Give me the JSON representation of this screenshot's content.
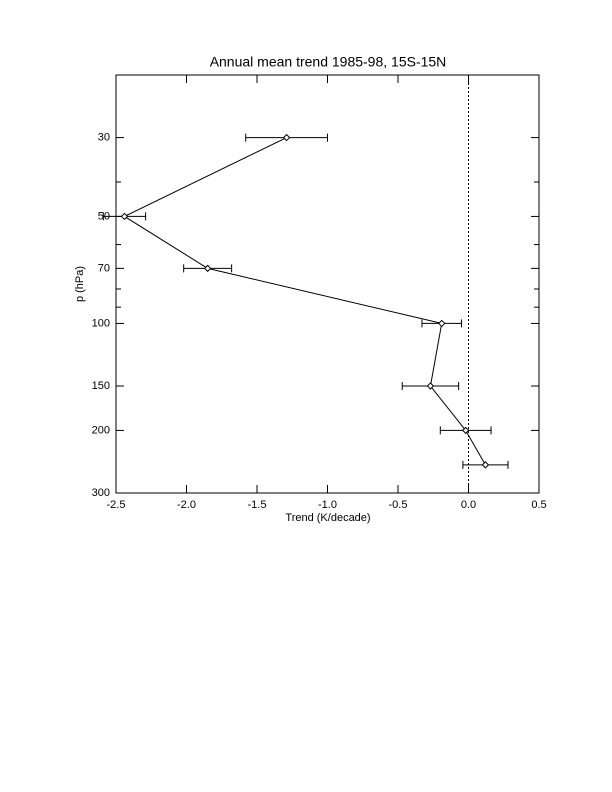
{
  "chart_data": {
    "type": "profile",
    "title": "Annual mean trend 1985-98, 15S-15N",
    "xlabel": "Trend (K/decade)",
    "ylabel": "p (hPa)",
    "pressure": [
      30,
      50,
      70,
      100,
      150,
      200,
      250
    ],
    "values": [
      -1.29,
      -2.44,
      -1.85,
      -0.19,
      -0.27,
      -0.02,
      0.12
    ],
    "xerr": [
      0.29,
      0.15,
      0.17,
      0.14,
      0.2,
      0.18,
      0.16
    ],
    "color": "#000000",
    "xlim": [
      -2.5,
      0.5
    ],
    "xticks": [
      -2.5,
      {
        "value": -2,
        "label": "-2.0"
      },
      {
        "value": -1.5,
        "label": "-1.5"
      },
      {
        "value": -1,
        "label": "-1.0"
      },
      {
        "value": -0.5,
        "label": "-0.5"
      },
      {
        "value": 0,
        "label": "0.0"
      },
      0.5
    ],
    "ylim": [
      300,
      20
    ],
    "ylog": true,
    "yticks": [
      30,
      50,
      70,
      100,
      150,
      200,
      300
    ],
    "yminor_ticks": [
      40,
      60,
      80,
      90
    ],
    "vline": 0
  }
}
